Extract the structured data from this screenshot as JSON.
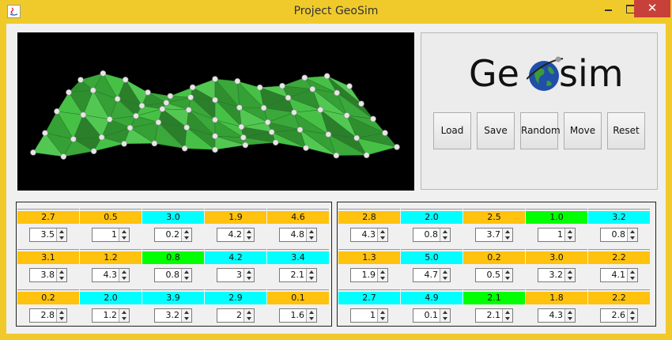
{
  "window": {
    "title": "Project GeoSim",
    "close_glyph": "✕"
  },
  "logo": {
    "text_before": "Ge",
    "text_after": "sim"
  },
  "buttons": [
    "Load",
    "Save",
    "Random",
    "Move",
    "Reset"
  ],
  "colors": {
    "orange": "#ffc20e",
    "cyan": "#00ffff",
    "green": "#00ff00"
  },
  "left_table": [
    [
      {
        "label": "2.7",
        "color": "orange",
        "value": "3.5"
      },
      {
        "label": "0.5",
        "color": "orange",
        "value": "1"
      },
      {
        "label": "3.0",
        "color": "cyan",
        "value": "0.2"
      },
      {
        "label": "1.9",
        "color": "orange",
        "value": "4.2"
      },
      {
        "label": "4.6",
        "color": "orange",
        "value": "4.8"
      }
    ],
    [
      {
        "label": "3.1",
        "color": "orange",
        "value": "3.8"
      },
      {
        "label": "1.2",
        "color": "orange",
        "value": "4.3"
      },
      {
        "label": "0.8",
        "color": "green",
        "value": "0.8"
      },
      {
        "label": "4.2",
        "color": "cyan",
        "value": "3"
      },
      {
        "label": "3.4",
        "color": "cyan",
        "value": "2.1"
      }
    ],
    [
      {
        "label": "0.2",
        "color": "orange",
        "value": "2.8"
      },
      {
        "label": "2.0",
        "color": "cyan",
        "value": "1.2"
      },
      {
        "label": "3.9",
        "color": "cyan",
        "value": "3.2"
      },
      {
        "label": "2.9",
        "color": "cyan",
        "value": "2"
      },
      {
        "label": "0.1",
        "color": "orange",
        "value": "1.6"
      }
    ]
  ],
  "right_table": [
    [
      {
        "label": "2.8",
        "color": "orange",
        "value": "4.3"
      },
      {
        "label": "2.0",
        "color": "cyan",
        "value": "0.8"
      },
      {
        "label": "2.5",
        "color": "orange",
        "value": "3.7"
      },
      {
        "label": "1.0",
        "color": "green",
        "value": "1"
      },
      {
        "label": "3.2",
        "color": "cyan",
        "value": "0.8"
      }
    ],
    [
      {
        "label": "1.3",
        "color": "orange",
        "value": "1.9"
      },
      {
        "label": "5.0",
        "color": "cyan",
        "value": "4.7"
      },
      {
        "label": "0.2",
        "color": "orange",
        "value": "0.5"
      },
      {
        "label": "3.0",
        "color": "orange",
        "value": "3.2"
      },
      {
        "label": "2.2",
        "color": "orange",
        "value": "4.1"
      }
    ],
    [
      {
        "label": "2.7",
        "color": "cyan",
        "value": "1"
      },
      {
        "label": "4.9",
        "color": "cyan",
        "value": "0.1"
      },
      {
        "label": "2.1",
        "color": "green",
        "value": "2.1"
      },
      {
        "label": "1.8",
        "color": "orange",
        "value": "4.3"
      },
      {
        "label": "2.2",
        "color": "orange",
        "value": "2.6"
      }
    ]
  ]
}
